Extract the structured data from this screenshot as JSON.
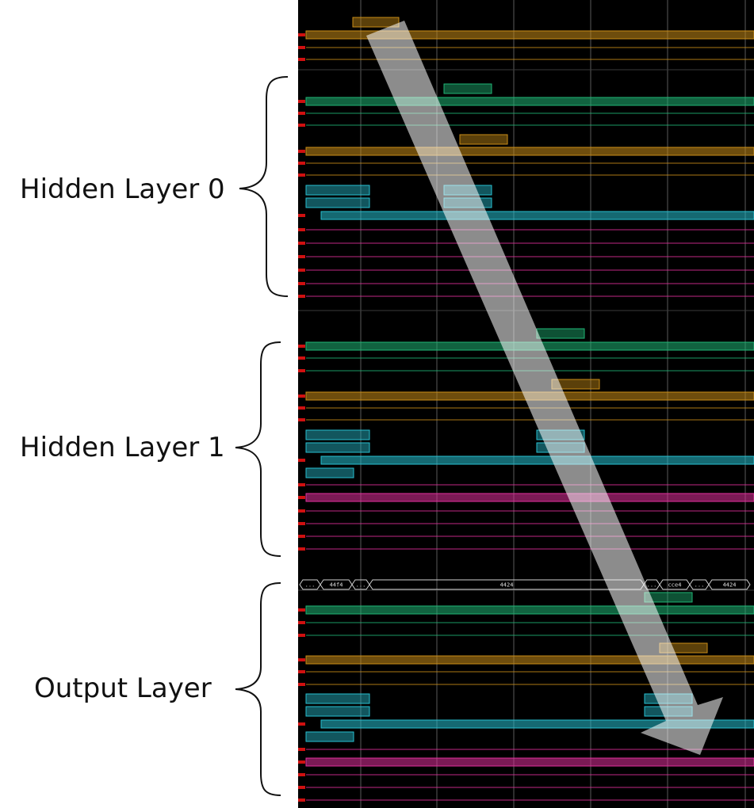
{
  "labels": {
    "hidden_layer_0": "Hidden Layer 0",
    "hidden_layer_1": "Hidden Layer 1",
    "output_layer": "Output Layer"
  },
  "bus_values": [
    "...",
    "44f4",
    "...",
    "4424",
    "...",
    "cce4",
    "...",
    "4424"
  ],
  "colors": {
    "background": "#000000",
    "grid": "#5a5a5a",
    "green": "#1fb575",
    "orange": "#c98d17",
    "cyan": "#27bfd0",
    "magenta": "#e0309b",
    "marker": "#d01010",
    "arrow": "#ffffff",
    "text": "#111111"
  },
  "icons": {
    "brace": "left-curly-brace",
    "arrow": "diagonal-down-arrow"
  }
}
